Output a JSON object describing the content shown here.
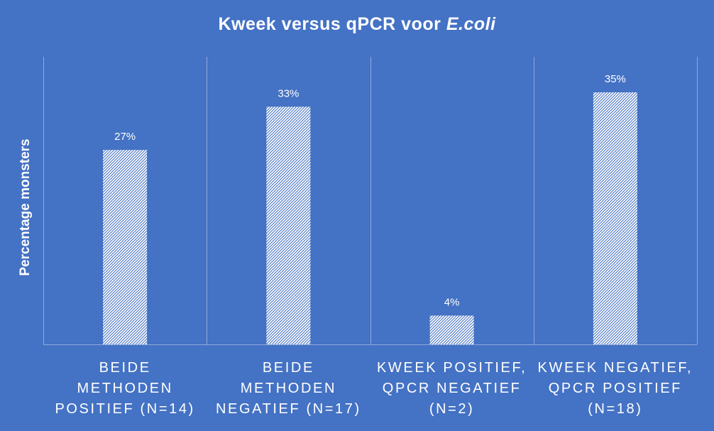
{
  "chart_data": {
    "type": "bar",
    "title": "Kweek versus qPCR voor",
    "title_italic": "E.coli",
    "xlabel": "",
    "ylabel": "Percentage monsters",
    "categories": [
      [
        "BEIDE",
        "METHODEN",
        "POSITIEF (N=14)"
      ],
      [
        "BEIDE",
        "METHODEN",
        "NEGATIEF (N=17)"
      ],
      [
        "KWEEK POSITIEF,",
        "QPCR NEGATIEF",
        "(N=2)"
      ],
      [
        "KWEEK NEGATIEF,",
        "QPCR POSITIEF",
        "(N=18)"
      ]
    ],
    "values": [
      27,
      33,
      4,
      35
    ],
    "data_labels": [
      "27%",
      "33%",
      "4%",
      "35%"
    ],
    "unit": "%",
    "ylim": [
      0,
      38
    ],
    "grid": "vertical separators between categories",
    "legend": "none",
    "colors": {
      "background": "#4472c4",
      "bar_fill": "#ffffff",
      "bar_hatch": "#4472c4",
      "text": "#ffffff",
      "axis": "#8faadc"
    }
  }
}
